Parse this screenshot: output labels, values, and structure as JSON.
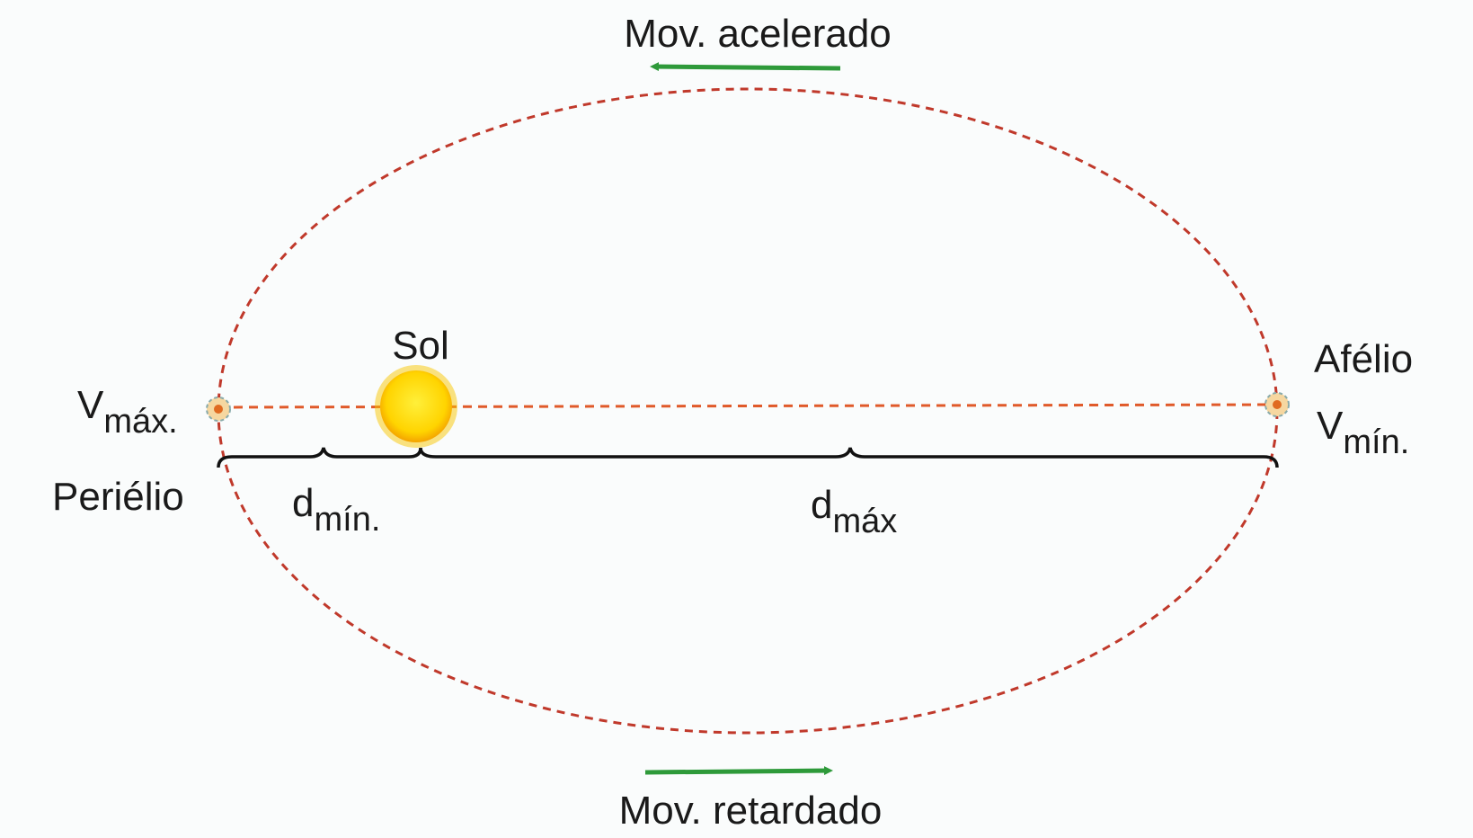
{
  "labels": {
    "top_arrow": "Mov. acelerado",
    "bottom_arrow": "Mov. retardado",
    "sun": "Sol",
    "aphelion": "Afélio",
    "perihelion": "Periélio",
    "v_max": {
      "main": "V",
      "sub": "máx."
    },
    "v_min": {
      "main": "V",
      "sub": "mín."
    },
    "d_min": {
      "main": "d",
      "sub": "mín."
    },
    "d_max": {
      "main": "d",
      "sub": "máx"
    }
  }
}
